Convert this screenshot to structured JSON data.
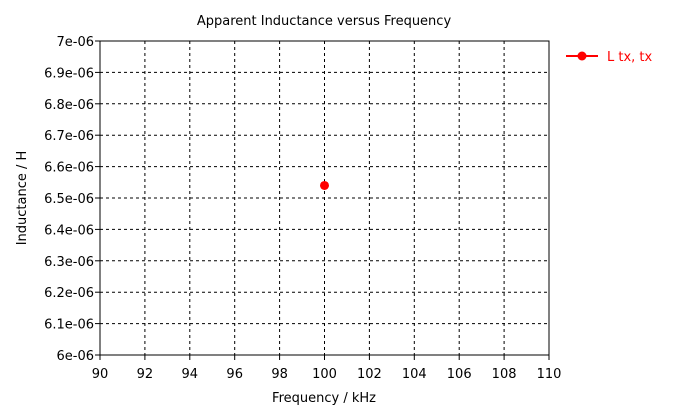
{
  "chart_data": {
    "type": "scatter",
    "title": "Apparent Inductance versus Frequency",
    "xlabel": "Frequency / kHz",
    "ylabel": "Inductance / H",
    "xlim": [
      90,
      110
    ],
    "ylim": [
      6e-06,
      7e-06
    ],
    "x_ticks": [
      "90",
      "92",
      "94",
      "96",
      "98",
      "100",
      "102",
      "104",
      "106",
      "108",
      "110"
    ],
    "y_ticks": [
      "6e-06",
      "6.1e-06",
      "6.2e-06",
      "6.3e-06",
      "6.4e-06",
      "6.5e-06",
      "6.6e-06",
      "6.7e-06",
      "6.8e-06",
      "6.9e-06",
      "7e-06"
    ],
    "grid": true,
    "legend_position": "top-right",
    "series": [
      {
        "name": "L tx, tx",
        "color": "#ff0000",
        "points": [
          {
            "x": 100,
            "y": 6.54e-06
          }
        ]
      }
    ]
  }
}
